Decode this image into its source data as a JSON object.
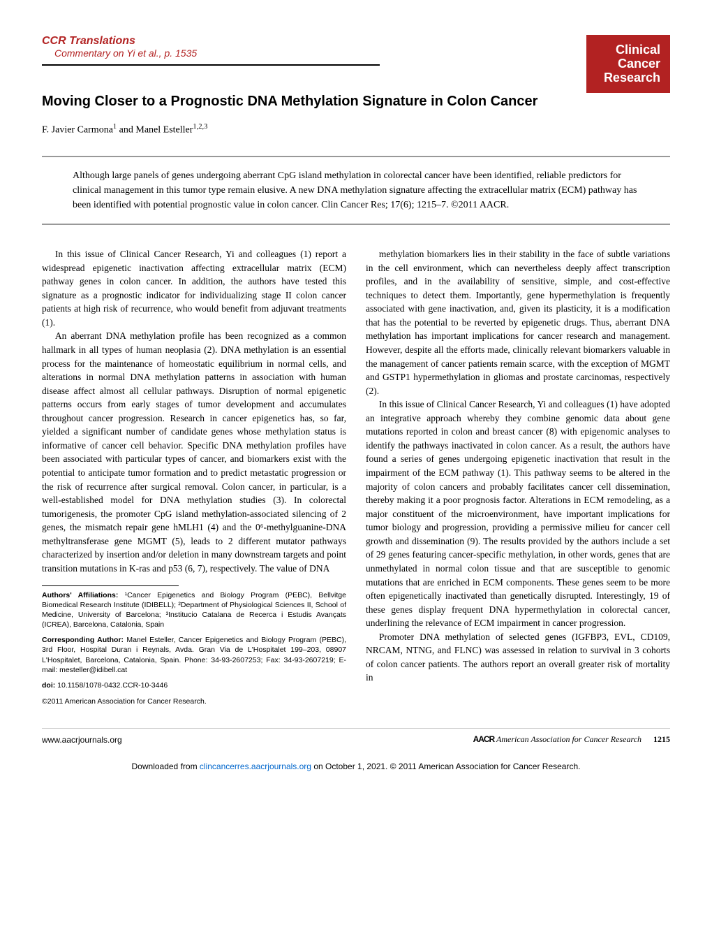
{
  "colors": {
    "accent_red": "#b22222",
    "link_blue": "#0066cc",
    "rule_gray": "#999999",
    "text": "#000000",
    "bg": "#ffffff"
  },
  "header": {
    "section": "CCR Translations",
    "commentary": "Commentary on Yi et al., p. 1535",
    "logo_lines": [
      "Clinical",
      "Cancer",
      "Research"
    ]
  },
  "title": "Moving Closer to a Prognostic DNA Methylation Signature in Colon Cancer",
  "authors_html": "F. Javier Carmona¹ and Manel Esteller¹,²,³",
  "authors": {
    "text": "F. Javier Carmona",
    "sup1": "1",
    "and": " and Manel Esteller",
    "sup2": "1,2,3"
  },
  "abstract": "Although large panels of genes undergoing aberrant CpG island methylation in colorectal cancer have been identified, reliable predictors for clinical management in this tumor type remain elusive. A new DNA methylation signature affecting the extracellular matrix (ECM) pathway has been identified with potential prognostic value in colon cancer. Clin Cancer Res; 17(6); 1215–7. ©2011 AACR.",
  "body": {
    "left": {
      "p1": "In this issue of Clinical Cancer Research, Yi and colleagues (1) report a widespread epigenetic inactivation affecting extracellular matrix (ECM) pathway genes in colon cancer. In addition, the authors have tested this signature as a prognostic indicator for individualizing stage II colon cancer patients at high risk of recurrence, who would benefit from adjuvant treatments (1).",
      "p2": "An aberrant DNA methylation profile has been recognized as a common hallmark in all types of human neoplasia (2). DNA methylation is an essential process for the maintenance of homeostatic equilibrium in normal cells, and alterations in normal DNA methylation patterns in association with human disease affect almost all cellular pathways. Disruption of normal epigenetic patterns occurs from early stages of tumor development and accumulates throughout cancer progression. Research in cancer epigenetics has, so far, yielded a significant number of candidate genes whose methylation status is informative of cancer cell behavior. Specific DNA methylation profiles have been associated with particular types of cancer, and biomarkers exist with the potential to anticipate tumor formation and to predict metastatic progression or the risk of recurrence after surgical removal. Colon cancer, in particular, is a well-established model for DNA methylation studies (3). In colorectal tumorigenesis, the promoter CpG island methylation-associated silencing of 2 genes, the mismatch repair gene hMLH1 (4) and the 0⁶-methylguanine-DNA methyltransferase gene MGMT (5), leads to 2 different mutator pathways characterized by insertion and/or deletion in many downstream targets and point transition mutations in K-ras and p53 (6, 7), respectively. The value of DNA"
    },
    "right": {
      "p1": "methylation biomarkers lies in their stability in the face of subtle variations in the cell environment, which can nevertheless deeply affect transcription profiles, and in the availability of sensitive, simple, and cost-effective techniques to detect them. Importantly, gene hypermethylation is frequently associated with gene inactivation, and, given its plasticity, it is a modification that has the potential to be reverted by epigenetic drugs. Thus, aberrant DNA methylation has important implications for cancer research and management. However, despite all the efforts made, clinically relevant biomarkers valuable in the management of cancer patients remain scarce, with the exception of MGMT and GSTP1 hypermethylation in gliomas and prostate carcinomas, respectively (2).",
      "p2": "In this issue of Clinical Cancer Research, Yi and colleagues (1) have adopted an integrative approach whereby they combine genomic data about gene mutations reported in colon and breast cancer (8) with epigenomic analyses to identify the pathways inactivated in colon cancer. As a result, the authors have found a series of genes undergoing epigenetic inactivation that result in the impairment of the ECM pathway (1). This pathway seems to be altered in the majority of colon cancers and probably facilitates cancer cell dissemination, thereby making it a poor prognosis factor. Alterations in ECM remodeling, as a major constituent of the microenvironment, have important implications for tumor biology and progression, providing a permissive milieu for cancer cell growth and dissemination (9). The results provided by the authors include a set of 29 genes featuring cancer-specific methylation, in other words, genes that are unmethylated in normal colon tissue and that are susceptible to genomic mutations that are enriched in ECM components. These genes seem to be more often epigenetically inactivated than genetically disrupted. Interestingly, 19 of these genes display frequent DNA hypermethylation in colorectal cancer, underlining the relevance of ECM impairment in cancer progression.",
      "p3": "Promoter DNA methylation of selected genes (IGFBP3, EVL, CD109, NRCAM, NTNG, and FLNC) was assessed in relation to survival in 3 cohorts of colon cancer patients. The authors report an overall greater risk of mortality in"
    }
  },
  "affiliations": {
    "label": "Authors' Affiliations:",
    "text": " ¹Cancer Epigenetics and Biology Program (PEBC), Bellvitge Biomedical Research Institute (IDIBELL); ²Department of Physiological Sciences II, School of Medicine, University of Barcelona; ³Institucio Catalana de Recerca i Estudis Avançats (ICREA), Barcelona, Catalonia, Spain"
  },
  "corresponding": {
    "label": "Corresponding Author:",
    "text": " Manel Esteller, Cancer Epigenetics and Biology Program (PEBC), 3rd Floor, Hospital Duran i Reynals, Avda. Gran Via de L'Hospitalet 199–203, 08907 L'Hospitalet, Barcelona, Catalonia, Spain. Phone: 34-93-2607253; Fax: 34-93-2607219; E-mail: mesteller@idibell.cat"
  },
  "doi": {
    "label": "doi:",
    "value": " 10.1158/1078-0432.CCR-10-3446"
  },
  "copyright": "©2011 American Association for Cancer Research.",
  "footer": {
    "left": "www.aacrjournals.org",
    "org_mark": "AACR",
    "org_text": "American Association for Cancer Research",
    "page": "1215"
  },
  "download_bar": {
    "prefix": "Downloaded from ",
    "link_text": "clincancerres.aacrjournals.org",
    "suffix": " on October 1, 2021. © 2011 American Association for Cancer Research."
  }
}
